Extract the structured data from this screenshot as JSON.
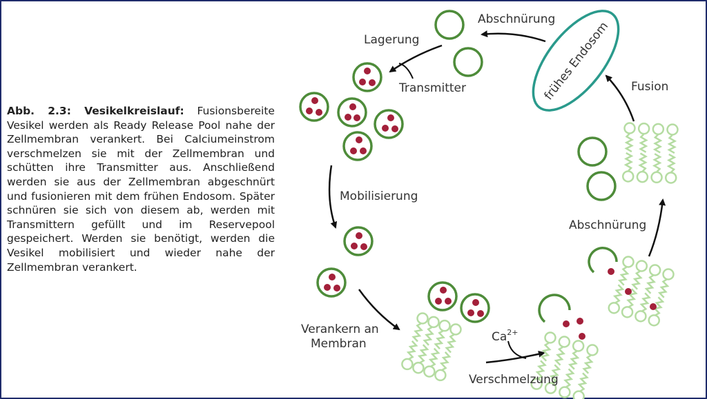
{
  "caption": {
    "label": "Abb. 2.3: Vesikelkreislauf:",
    "text": "Fusionsbereite Vesikel werden als Ready Release Pool nahe der Zellmembran verankert. Bei Calciumeinstrom verschmelzen sie mit der Zellmembran und schütten ihre Transmitter aus. Anschließend werden sie aus der Zellmembran abgeschnürt und fusionieren mit dem frühen Endosom. Später schnüren sie sich von diesem ab, werden mit Transmittern gefüllt und im Reservepool gespeichert. Werden sie benötigt, werden die Vesikel mobilisiert und wieder nahe der Zellmembran verankert."
  },
  "labels": {
    "abschnuerung_top": "Abschnürung",
    "lagerung": "Lagerung",
    "transmitter": "Transmitter",
    "endosom": "frühes Endosom",
    "fusion": "Fusion",
    "mobilisierung": "Mobilisierung",
    "abschnuerung_right": "Abschnürung",
    "verankern_1": "Verankern an",
    "verankern_2": "Membran",
    "ca": "Ca",
    "ca_sup": "2+",
    "verschmelzung": "Verschmelzung"
  },
  "colors": {
    "vesicle": "#4e8c3a",
    "transmitter": "#a3203a",
    "membrane": "#b5dca2",
    "endosome": "#2a9a8c",
    "arrow": "#111111",
    "frame": "#1f2b6b"
  }
}
